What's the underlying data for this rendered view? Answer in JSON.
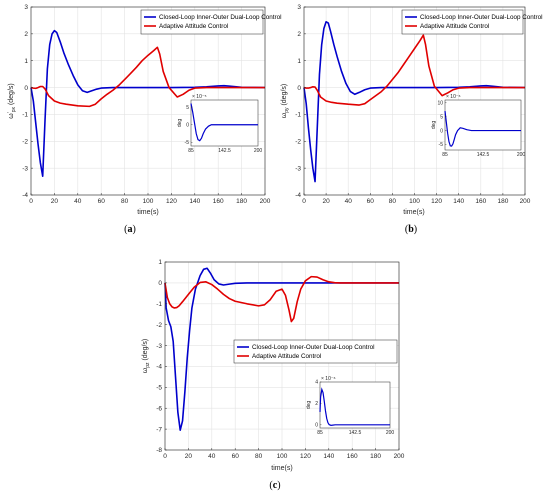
{
  "chart_data": [
    {
      "id": "a",
      "type": "line",
      "caption": "a",
      "xlabel": "time(s)",
      "ylabel_main": "ω",
      "ylabel_sup": "ʹ",
      "ylabel_sub": "px",
      "ylabel_unit": " (deg/s)",
      "xlim": [
        0,
        200
      ],
      "ylim": [
        -4,
        3
      ],
      "xticks": [
        "0",
        "20",
        "40",
        "60",
        "80",
        "100",
        "120",
        "140",
        "160",
        "180",
        "200"
      ],
      "yticks": [
        "-4",
        "-3",
        "-2",
        "-1",
        "0",
        "1",
        "2",
        "3"
      ],
      "grid": true,
      "legend_position": "top-right",
      "series": [
        {
          "name": "Closed-Loop Inner-Outer Dual-Loop Control",
          "color": "#0000cc",
          "x": [
            0,
            2,
            4,
            6,
            8,
            10,
            12,
            14,
            16,
            18,
            20,
            22,
            25,
            28,
            32,
            36,
            40,
            44,
            48,
            52,
            56,
            60,
            70,
            80,
            90,
            100,
            120,
            140,
            150,
            160,
            165,
            170,
            180,
            200
          ],
          "y": [
            0,
            -0.5,
            -1.3,
            -2.1,
            -2.8,
            -3.3,
            -1.2,
            0.7,
            1.6,
            2.0,
            2.12,
            2.05,
            1.7,
            1.3,
            0.85,
            0.45,
            0.1,
            -0.12,
            -0.18,
            -0.12,
            -0.06,
            -0.02,
            0,
            0,
            0,
            0,
            0,
            0.01,
            0.03,
            0.06,
            0.07,
            0.05,
            0.01,
            0
          ]
        },
        {
          "name": "Adaptive Attitude Control",
          "color": "#e00000",
          "x": [
            0,
            2,
            4,
            6,
            8,
            10,
            12,
            15,
            20,
            25,
            30,
            40,
            50,
            55,
            60,
            65,
            70,
            75,
            80,
            85,
            90,
            95,
            100,
            105,
            108,
            110,
            113,
            118,
            125,
            130,
            135,
            140,
            150,
            160,
            170,
            180,
            200
          ],
          "y": [
            0,
            -0.02,
            -0.03,
            0,
            0.04,
            0.04,
            -0.05,
            -0.3,
            -0.5,
            -0.58,
            -0.62,
            -0.68,
            -0.7,
            -0.62,
            -0.42,
            -0.25,
            -0.1,
            0.08,
            0.3,
            0.52,
            0.75,
            1.0,
            1.2,
            1.38,
            1.5,
            1.25,
            0.6,
            0.0,
            -0.35,
            -0.25,
            -0.1,
            -0.02,
            0,
            0,
            0,
            0,
            0
          ]
        }
      ],
      "inset": {
        "ylabel": "deg",
        "exponent": "× 10⁻⁵",
        "xticks": [
          "85",
          "142.5",
          "200"
        ],
        "yticks": [
          "-5",
          "0",
          "5"
        ],
        "xlim": [
          85,
          200
        ],
        "ylim": [
          -6,
          7
        ],
        "x": [
          85,
          88,
          91,
          94,
          97,
          100,
          103,
          106,
          110,
          115,
          120,
          130,
          140,
          150,
          160,
          170,
          180,
          190,
          200
        ],
        "y": [
          6,
          3.5,
          0.5,
          -2.5,
          -4.2,
          -4.5,
          -3.8,
          -2.5,
          -1.2,
          -0.4,
          0,
          0,
          0,
          0,
          0,
          0,
          0,
          0,
          0
        ]
      }
    },
    {
      "id": "b",
      "type": "line",
      "caption": "b",
      "xlabel": "time(s)",
      "ylabel_main": "ω",
      "ylabel_sup": "",
      "ylabel_sub": "py",
      "ylabel_unit": " (deg/s)",
      "xlim": [
        0,
        200
      ],
      "ylim": [
        -4,
        3
      ],
      "xticks": [
        "0",
        "20",
        "40",
        "60",
        "80",
        "100",
        "120",
        "140",
        "160",
        "180",
        "200"
      ],
      "yticks": [
        "-4",
        "-3",
        "-2",
        "-1",
        "0",
        "1",
        "2",
        "3"
      ],
      "grid": true,
      "legend_position": "top-right",
      "series": [
        {
          "name": "Closed-Loop Inner-Outer Dual-Loop Control",
          "color": "#0000cc",
          "x": [
            0,
            2,
            4,
            6,
            8,
            10,
            12,
            14,
            16,
            18,
            20,
            22,
            24,
            27,
            30,
            34,
            38,
            42,
            46,
            50,
            55,
            60,
            70,
            80,
            100,
            120,
            140,
            150,
            160,
            165,
            170,
            180,
            200
          ],
          "y": [
            0,
            -0.6,
            -1.5,
            -2.3,
            -3.0,
            -3.5,
            -1.5,
            0.5,
            1.6,
            2.2,
            2.45,
            2.4,
            2.1,
            1.6,
            1.15,
            0.6,
            0.15,
            -0.15,
            -0.25,
            -0.18,
            -0.08,
            -0.02,
            0,
            0,
            0,
            0,
            0.01,
            0.03,
            0.06,
            0.07,
            0.05,
            0.01,
            0
          ]
        },
        {
          "name": "Adaptive Attitude Control",
          "color": "#e00000",
          "x": [
            0,
            2,
            4,
            6,
            8,
            10,
            12,
            15,
            20,
            25,
            30,
            40,
            50,
            55,
            60,
            65,
            70,
            75,
            80,
            85,
            90,
            95,
            100,
            105,
            108,
            110,
            113,
            118,
            125,
            130,
            135,
            140,
            150,
            160,
            170,
            180,
            200
          ],
          "y": [
            0,
            -0.02,
            -0.02,
            0,
            0.03,
            0.02,
            -0.1,
            -0.35,
            -0.5,
            -0.55,
            -0.58,
            -0.62,
            -0.65,
            -0.6,
            -0.45,
            -0.3,
            -0.15,
            0.05,
            0.3,
            0.55,
            0.85,
            1.15,
            1.45,
            1.75,
            1.95,
            1.6,
            0.8,
            0.05,
            -0.3,
            -0.2,
            -0.08,
            -0.02,
            0,
            0,
            0,
            0,
            0
          ]
        }
      ],
      "inset": {
        "ylabel": "deg",
        "exponent": "× 10⁻⁶",
        "xticks": [
          "85",
          "142.5",
          "200"
        ],
        "yticks": [
          "-5",
          "0",
          "5",
          "10"
        ],
        "xlim": [
          85,
          200
        ],
        "ylim": [
          -7,
          11
        ],
        "x": [
          85,
          87,
          89,
          91,
          93,
          95,
          97,
          99,
          101,
          104,
          108,
          112,
          118,
          125,
          135,
          150,
          170,
          200
        ],
        "y": [
          7,
          3,
          -1,
          -4,
          -5.5,
          -5.6,
          -4.8,
          -3.2,
          -1.5,
          0,
          1.0,
          0.8,
          0.3,
          0,
          0,
          0,
          0,
          0
        ]
      }
    },
    {
      "id": "c",
      "type": "line",
      "caption": "c",
      "xlabel": "time(s)",
      "ylabel_main": "ω",
      "ylabel_sup": "",
      "ylabel_sub": "pz",
      "ylabel_unit": " (deg/s)",
      "xlim": [
        0,
        200
      ],
      "ylim": [
        -8,
        1
      ],
      "xticks": [
        "0",
        "20",
        "40",
        "60",
        "80",
        "100",
        "120",
        "140",
        "160",
        "180",
        "200"
      ],
      "yticks": [
        "-8",
        "-7",
        "-6",
        "-5",
        "-4",
        "-3",
        "-2",
        "-1",
        "0",
        "1"
      ],
      "grid": true,
      "legend_position": "center-right",
      "series": [
        {
          "name": "Closed-Loop Inner-Outer Dual-Loop Control",
          "color": "#0000cc",
          "x": [
            0,
            1,
            3,
            5,
            7,
            9,
            11,
            13,
            15,
            17,
            19,
            21,
            23,
            26,
            30,
            33,
            36,
            39,
            42,
            46,
            50,
            55,
            60,
            70,
            80,
            100,
            120,
            140,
            160,
            180,
            200
          ],
          "y": [
            0,
            -1.2,
            -1.8,
            -2.1,
            -2.8,
            -4.5,
            -6.2,
            -7.05,
            -6.6,
            -5.2,
            -3.6,
            -2.3,
            -1.2,
            -0.3,
            0.35,
            0.65,
            0.7,
            0.45,
            0.15,
            -0.05,
            -0.1,
            -0.06,
            -0.02,
            0,
            0,
            0,
            0,
            0,
            0,
            0,
            0
          ]
        },
        {
          "name": "Adaptive Attitude Control",
          "color": "#e00000",
          "x": [
            0,
            2,
            4,
            6,
            8,
            10,
            12,
            15,
            20,
            25,
            30,
            35,
            40,
            45,
            50,
            55,
            60,
            70,
            80,
            85,
            90,
            95,
            100,
            103,
            106,
            108,
            110,
            113,
            116,
            120,
            125,
            130,
            135,
            140,
            145,
            150,
            160,
            180,
            200
          ],
          "y": [
            0,
            -0.7,
            -1.0,
            -1.15,
            -1.2,
            -1.18,
            -1.1,
            -0.9,
            -0.55,
            -0.2,
            0.02,
            0.05,
            -0.08,
            -0.3,
            -0.55,
            -0.75,
            -0.88,
            -1.0,
            -1.1,
            -1.05,
            -0.8,
            -0.4,
            -0.3,
            -0.6,
            -1.3,
            -1.85,
            -1.7,
            -0.9,
            -0.3,
            0.1,
            0.3,
            0.28,
            0.15,
            0.05,
            0.01,
            0,
            0,
            0,
            0
          ]
        }
      ],
      "inset": {
        "ylabel": "deg",
        "exponent": "× 10⁻⁶",
        "xticks": [
          "85",
          "142.5",
          "200"
        ],
        "yticks": [
          "0",
          "2",
          "4"
        ],
        "xlim": [
          85,
          200
        ],
        "ylim": [
          -0.3,
          4
        ],
        "x": [
          85,
          86,
          88,
          90,
          92,
          94,
          96,
          98,
          100,
          103,
          106,
          110,
          115,
          120,
          130,
          150,
          200
        ],
        "y": [
          1.2,
          2.6,
          3.3,
          3.0,
          2.2,
          1.3,
          0.6,
          0.2,
          0.02,
          -0.05,
          -0.03,
          0,
          0,
          0,
          0,
          0,
          0
        ]
      }
    }
  ]
}
